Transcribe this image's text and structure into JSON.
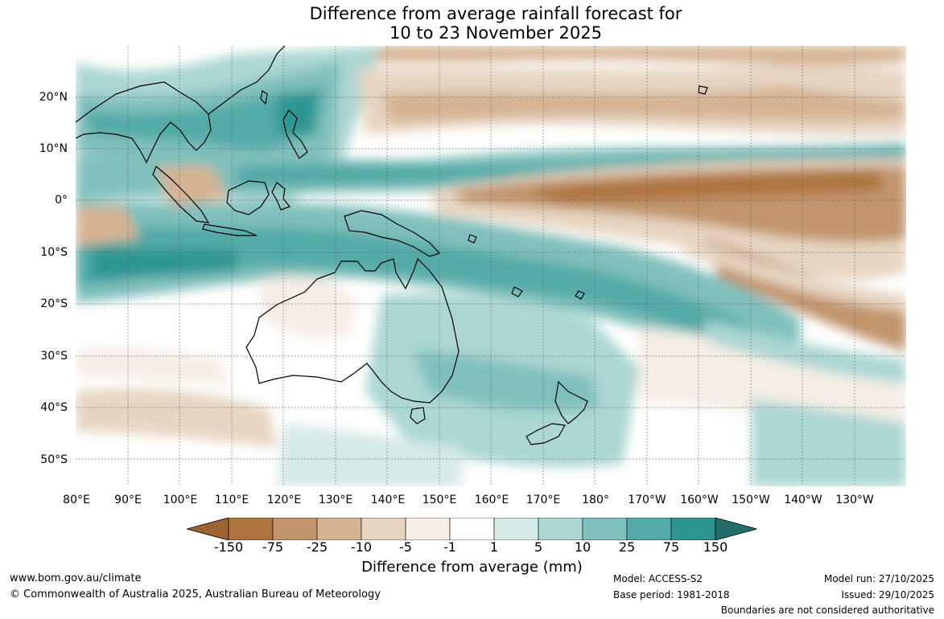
{
  "title": {
    "line1": "Difference from average rainfall forecast for",
    "line2": "10 to 23 November 2025"
  },
  "map": {
    "lon_labels": [
      "80°E",
      "90°E",
      "100°E",
      "110°E",
      "120°E",
      "130°E",
      "140°E",
      "150°E",
      "160°E",
      "170°E",
      "180°",
      "170°W",
      "160°W",
      "150°W",
      "140°W",
      "130°W"
    ],
    "lat_labels": [
      "20°N",
      "10°N",
      "0°",
      "10°S",
      "20°S",
      "30°S",
      "40°S",
      "50°S"
    ],
    "coastline_color": "#000000",
    "gridline_style": "dotted"
  },
  "colorbar": {
    "label": "Difference from average (mm)",
    "tick_labels": [
      "-150",
      "-75",
      "-25",
      "-10",
      "-5",
      "-1",
      "1",
      "5",
      "10",
      "25",
      "75",
      "150"
    ],
    "colors": [
      "#9b6232",
      "#ad7440",
      "#c1946c",
      "#d5b393",
      "#e7d5c2",
      "#f5ede6",
      "#ffffff",
      "#d5e9e7",
      "#acd7d3",
      "#80c0bc",
      "#53aaa7",
      "#2e9692",
      "#226d6a"
    ],
    "extend": "both"
  },
  "footer": {
    "website": "www.bom.gov.au/climate",
    "copyright": "© Commonwealth of Australia 2025, Australian Bureau of Meteorology",
    "model": "Model: ACCESS-S2",
    "base_period": "Base period: 1981-2018",
    "model_run": "Model run: 27/10/2025",
    "issued": "Issued: 29/10/2025",
    "disclaimer": "Boundaries are not considered authoritative"
  }
}
